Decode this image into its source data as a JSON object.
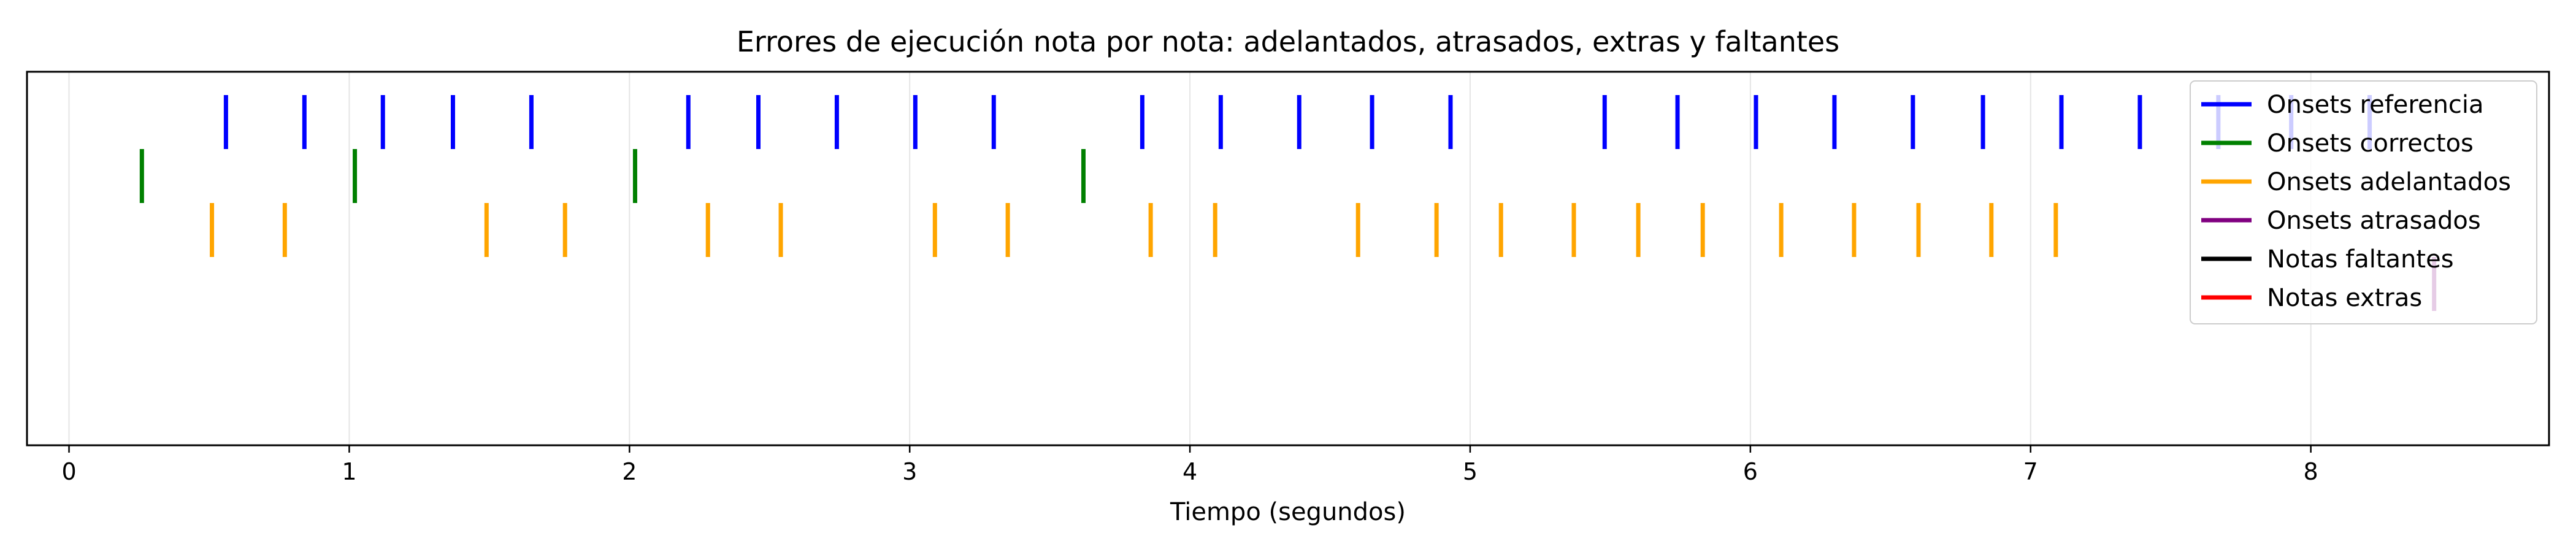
{
  "chart_data": {
    "type": "event_plot",
    "title": "Errores de ejecución nota por nota: adelantados, atrasados, extras y faltantes",
    "xlabel": "Tiempo (segundos)",
    "ylabel": "",
    "xlim": [
      -0.15,
      8.85
    ],
    "xticks": [
      0,
      1,
      2,
      3,
      4,
      5,
      6,
      7,
      8
    ],
    "grid": "vertical",
    "legend_position": "top-right",
    "series": [
      {
        "name": "Onsets referencia",
        "color": "#0000ff",
        "row": 0,
        "x": [
          0.56,
          0.84,
          1.12,
          1.37,
          1.65,
          2.21,
          2.46,
          2.74,
          3.02,
          3.3,
          3.83,
          4.11,
          4.39,
          4.65,
          4.93,
          5.48,
          5.74,
          6.02,
          6.3,
          6.58,
          6.83,
          7.11,
          7.39,
          7.67,
          7.93,
          8.21
        ]
      },
      {
        "name": "Onsets correctos",
        "color": "#008000",
        "row": 1,
        "x": [
          0.26,
          1.02,
          2.02,
          3.62
        ]
      },
      {
        "name": "Onsets adelantados",
        "color": "#ffa500",
        "row": 2,
        "x": [
          0.51,
          0.77,
          1.49,
          1.77,
          2.28,
          2.54,
          3.09,
          3.35,
          3.86,
          4.09,
          4.6,
          4.88,
          5.11,
          5.37,
          5.6,
          5.83,
          6.11,
          6.37,
          6.6,
          6.86,
          7.09
        ]
      },
      {
        "name": "Onsets atrasados",
        "color": "#800080",
        "row": 3,
        "x": [
          8.44
        ]
      },
      {
        "name": "Notas faltantes",
        "color": "#000000",
        "row": 4,
        "x": []
      },
      {
        "name": "Notas extras",
        "color": "#ff0000",
        "row": 5,
        "x": []
      }
    ]
  }
}
